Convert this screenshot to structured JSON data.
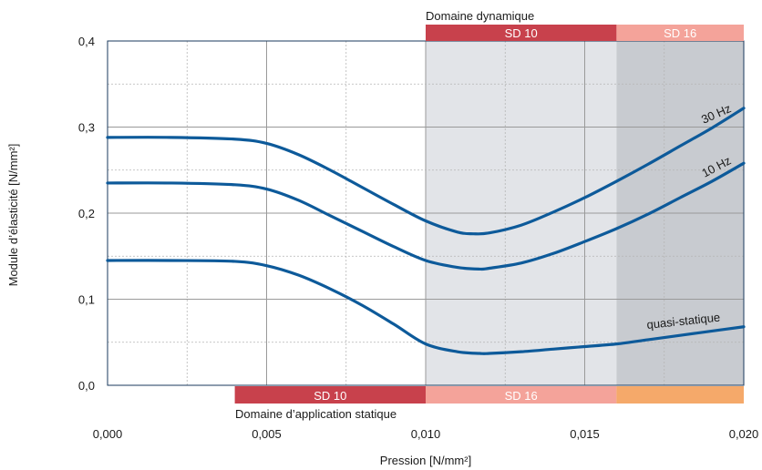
{
  "chart_data": {
    "type": "line",
    "xlabel": "Pression [N/mm²]",
    "ylabel": "Module d’élasticité [N/mm²]",
    "xlim": [
      0.0,
      0.02
    ],
    "ylim": [
      0.0,
      0.4
    ],
    "x_ticks": [
      "0,000",
      "0,005",
      "0,010",
      "0,015",
      "0,020"
    ],
    "x_tick_values": [
      0.0,
      0.005,
      0.01,
      0.015,
      0.02
    ],
    "y_ticks": [
      "0,0",
      "0,1",
      "0,2",
      "0,3",
      "0,4"
    ],
    "y_tick_values": [
      0.0,
      0.1,
      0.2,
      0.3,
      0.4
    ],
    "grid": true,
    "series": [
      {
        "name": "30 Hz",
        "x": [
          0.0,
          0.002,
          0.004,
          0.005,
          0.006,
          0.007,
          0.008,
          0.009,
          0.01,
          0.011,
          0.0115,
          0.012,
          0.013,
          0.014,
          0.015,
          0.016,
          0.017,
          0.018,
          0.019,
          0.02
        ],
        "y": [
          0.288,
          0.288,
          0.286,
          0.281,
          0.268,
          0.25,
          0.23,
          0.21,
          0.191,
          0.178,
          0.176,
          0.177,
          0.186,
          0.201,
          0.218,
          0.237,
          0.257,
          0.278,
          0.299,
          0.322
        ]
      },
      {
        "name": "10 Hz",
        "x": [
          0.0,
          0.002,
          0.004,
          0.005,
          0.006,
          0.007,
          0.008,
          0.009,
          0.01,
          0.011,
          0.0117,
          0.012,
          0.013,
          0.014,
          0.015,
          0.016,
          0.017,
          0.018,
          0.019,
          0.02
        ],
        "y": [
          0.235,
          0.235,
          0.233,
          0.228,
          0.215,
          0.197,
          0.179,
          0.161,
          0.145,
          0.137,
          0.135,
          0.136,
          0.142,
          0.153,
          0.167,
          0.182,
          0.199,
          0.218,
          0.237,
          0.258
        ]
      },
      {
        "name": "quasi-statique",
        "x": [
          0.0,
          0.002,
          0.004,
          0.005,
          0.006,
          0.007,
          0.008,
          0.009,
          0.01,
          0.011,
          0.0117,
          0.012,
          0.013,
          0.014,
          0.015,
          0.016,
          0.017,
          0.018,
          0.019,
          0.02
        ],
        "y": [
          0.145,
          0.145,
          0.144,
          0.139,
          0.128,
          0.112,
          0.093,
          0.071,
          0.048,
          0.039,
          0.037,
          0.037,
          0.039,
          0.042,
          0.045,
          0.048,
          0.053,
          0.058,
          0.063,
          0.068
        ]
      }
    ],
    "bands": {
      "dynamic_title": "Domaine dynamique",
      "static_title": "Domaine d’application statique",
      "dynamic": [
        {
          "label": "SD 10",
          "x0": 0.01,
          "x1": 0.016,
          "color": "#c8414c"
        },
        {
          "label": "SD 16",
          "x0": 0.016,
          "x1": 0.02,
          "color": "#f4a39a"
        }
      ],
      "static": [
        {
          "label": "SD 10",
          "x0": 0.004,
          "x1": 0.01,
          "color": "#c8414c"
        },
        {
          "label": "SD 16",
          "x0": 0.01,
          "x1": 0.016,
          "color": "#f4a39a"
        },
        {
          "label": "",
          "x0": 0.016,
          "x1": 0.02,
          "color": "#f5a96a"
        }
      ],
      "shaded": [
        {
          "x0": 0.01,
          "x1": 0.016,
          "color": "#e2e4e8"
        },
        {
          "x0": 0.016,
          "x1": 0.02,
          "color": "#c8cbd0"
        }
      ]
    },
    "colors": {
      "line": "#0d5a9a",
      "grid_major": "#9a9a9a",
      "grid_minor": "#b5b5b5"
    }
  }
}
